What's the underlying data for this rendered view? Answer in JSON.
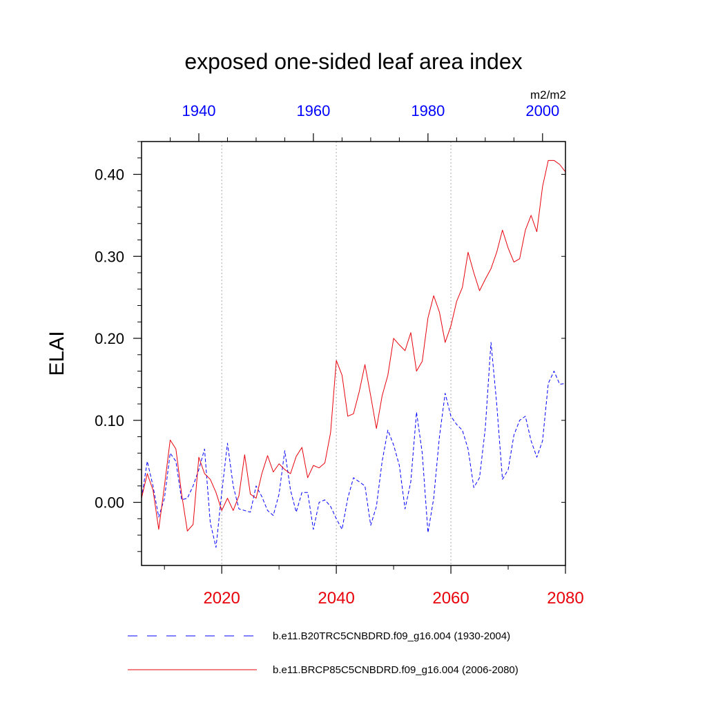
{
  "chart_data": {
    "type": "line",
    "title": "exposed one-sided leaf area index",
    "ylabel": "ELAI",
    "units": "m2/m2",
    "ylim": [
      -0.077,
      0.44
    ],
    "yticks": [
      0.0,
      0.1,
      0.2,
      0.3,
      0.4
    ],
    "ytick_labels": [
      "0.00",
      "0.10",
      "0.20",
      "0.30",
      "0.40"
    ],
    "grid": "vertical dotted at bottom-axis major ticks",
    "legend_position": "bottom",
    "bottom_axis": {
      "color": "#e8000b",
      "xlim": [
        2006,
        2080
      ],
      "ticks": [
        2020,
        2040,
        2060,
        2080
      ],
      "tick_labels": [
        "2020",
        "2040",
        "2060",
        "2080"
      ]
    },
    "top_axis": {
      "color": "#0000ff",
      "xlim": [
        1930,
        2004
      ],
      "ticks": [
        1940,
        1960,
        1980,
        2000
      ],
      "tick_labels": [
        "1940",
        "1960",
        "1980",
        "2000"
      ]
    },
    "series": [
      {
        "name": "b.e11.B20TRC5CNBDRD.f09_g16.004 (1930-2004)",
        "color": "#0000ff",
        "style": "dashed",
        "axis": "top",
        "x_start": 1930,
        "values": [
          0.005,
          0.05,
          0.02,
          -0.018,
          0.005,
          0.06,
          0.05,
          0.003,
          0.005,
          0.02,
          0.04,
          0.065,
          -0.025,
          -0.055,
          0.012,
          0.072,
          0.02,
          -0.008,
          -0.01,
          -0.012,
          0.02,
          0.007,
          -0.01,
          -0.016,
          0.01,
          0.063,
          0.015,
          -0.012,
          0.012,
          0.012,
          -0.033,
          0.0,
          0.003,
          -0.005,
          -0.02,
          -0.033,
          0.005,
          0.03,
          0.025,
          0.02,
          -0.028,
          -0.005,
          0.05,
          0.088,
          0.07,
          0.045,
          -0.008,
          0.025,
          0.11,
          0.06,
          -0.037,
          0.005,
          0.08,
          0.133,
          0.105,
          0.095,
          0.088,
          0.065,
          0.018,
          0.03,
          0.09,
          0.195,
          0.12,
          0.028,
          0.04,
          0.082,
          0.1,
          0.105,
          0.075,
          0.055,
          0.075,
          0.145,
          0.16,
          0.144,
          0.145
        ]
      },
      {
        "name": "b.e11.BRCP85C5CNBDRD.f09_g16.004 (2006-2080)",
        "color": "#e8000b",
        "style": "solid",
        "axis": "bottom",
        "x_start": 2006,
        "values": [
          0.005,
          0.035,
          0.015,
          -0.033,
          0.02,
          0.076,
          0.065,
          0.01,
          -0.035,
          -0.027,
          0.055,
          0.035,
          0.028,
          0.012,
          -0.01,
          0.005,
          -0.01,
          0.008,
          0.058,
          0.01,
          0.005,
          0.035,
          0.057,
          0.037,
          0.047,
          0.04,
          0.035,
          0.056,
          0.067,
          0.03,
          0.045,
          0.042,
          0.048,
          0.085,
          0.173,
          0.155,
          0.105,
          0.108,
          0.135,
          0.168,
          0.13,
          0.09,
          0.13,
          0.155,
          0.2,
          0.192,
          0.185,
          0.207,
          0.16,
          0.172,
          0.225,
          0.252,
          0.232,
          0.195,
          0.215,
          0.245,
          0.262,
          0.305,
          0.28,
          0.258,
          0.272,
          0.285,
          0.305,
          0.332,
          0.31,
          0.293,
          0.297,
          0.332,
          0.35,
          0.33,
          0.385,
          0.417,
          0.417,
          0.412,
          0.403
        ]
      }
    ]
  }
}
